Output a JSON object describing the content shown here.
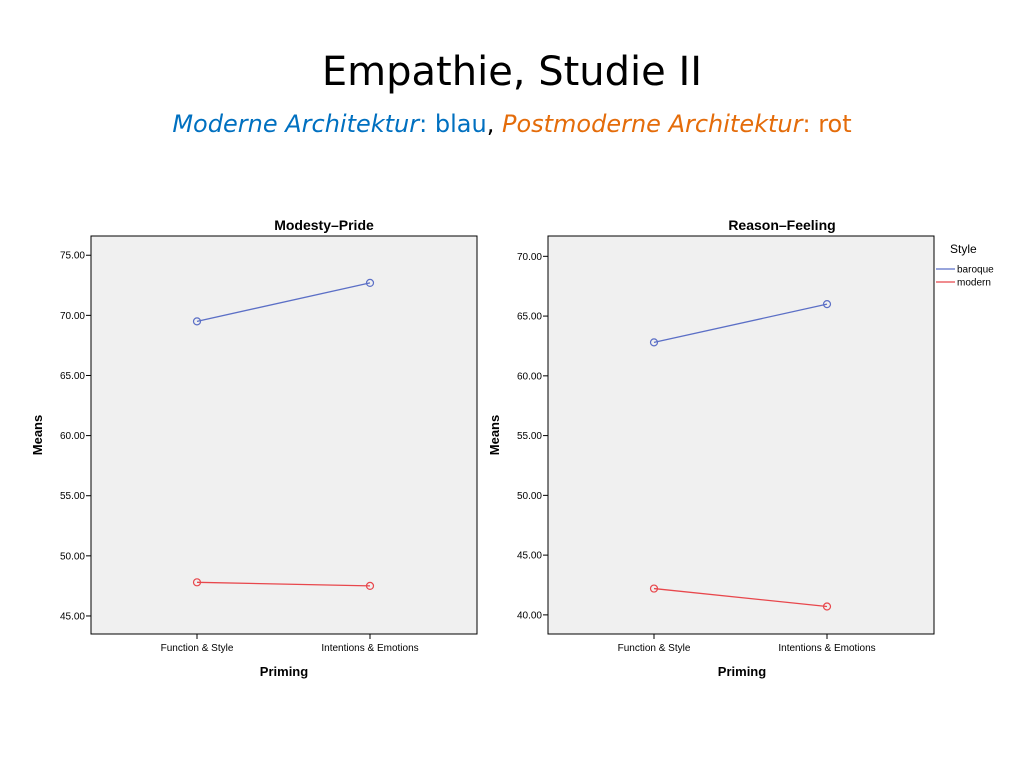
{
  "slide": {
    "title": "Empathie, Studie II",
    "subtitle": {
      "modern_label": "Moderne Architektur",
      "modern_color_word": ": blau",
      "separator": ",",
      "post_label": "Postmoderne Architektur",
      "post_color_word": ": rot"
    }
  },
  "colors": {
    "modern": "#0070C0",
    "postmodern": "#E46C0A",
    "baroque_series": "#5B6FC6",
    "modern_series": "#E8474C",
    "plot_bg": "#F0F0F0"
  },
  "legend": {
    "title": "Style",
    "entries": [
      "baroque",
      "modern"
    ],
    "placement": "right"
  },
  "chart_data": [
    {
      "type": "line",
      "title": "Modesty–Pride",
      "xlabel": "Priming",
      "ylabel": "Means",
      "categories": [
        "Function & Style",
        "Intentions & Emotions"
      ],
      "yticks": [
        "45.00",
        "50.00",
        "55.00",
        "60.00",
        "65.00",
        "70.00",
        "75.00"
      ],
      "ylim": [
        43.5,
        76.6
      ],
      "series": [
        {
          "name": "baroque",
          "values": [
            69.5,
            72.7
          ]
        },
        {
          "name": "modern",
          "values": [
            47.8,
            47.5
          ]
        }
      ]
    },
    {
      "type": "line",
      "title": "Reason–Feeling",
      "xlabel": "Priming",
      "ylabel": "Means",
      "categories": [
        "Function & Style",
        "Intentions & Emotions"
      ],
      "yticks": [
        "40.00",
        "45.00",
        "50.00",
        "55.00",
        "60.00",
        "65.00",
        "70.00"
      ],
      "ylim": [
        38.4,
        71.7
      ],
      "series": [
        {
          "name": "baroque",
          "values": [
            62.8,
            66.0
          ]
        },
        {
          "name": "modern",
          "values": [
            42.2,
            40.7
          ]
        }
      ]
    }
  ]
}
